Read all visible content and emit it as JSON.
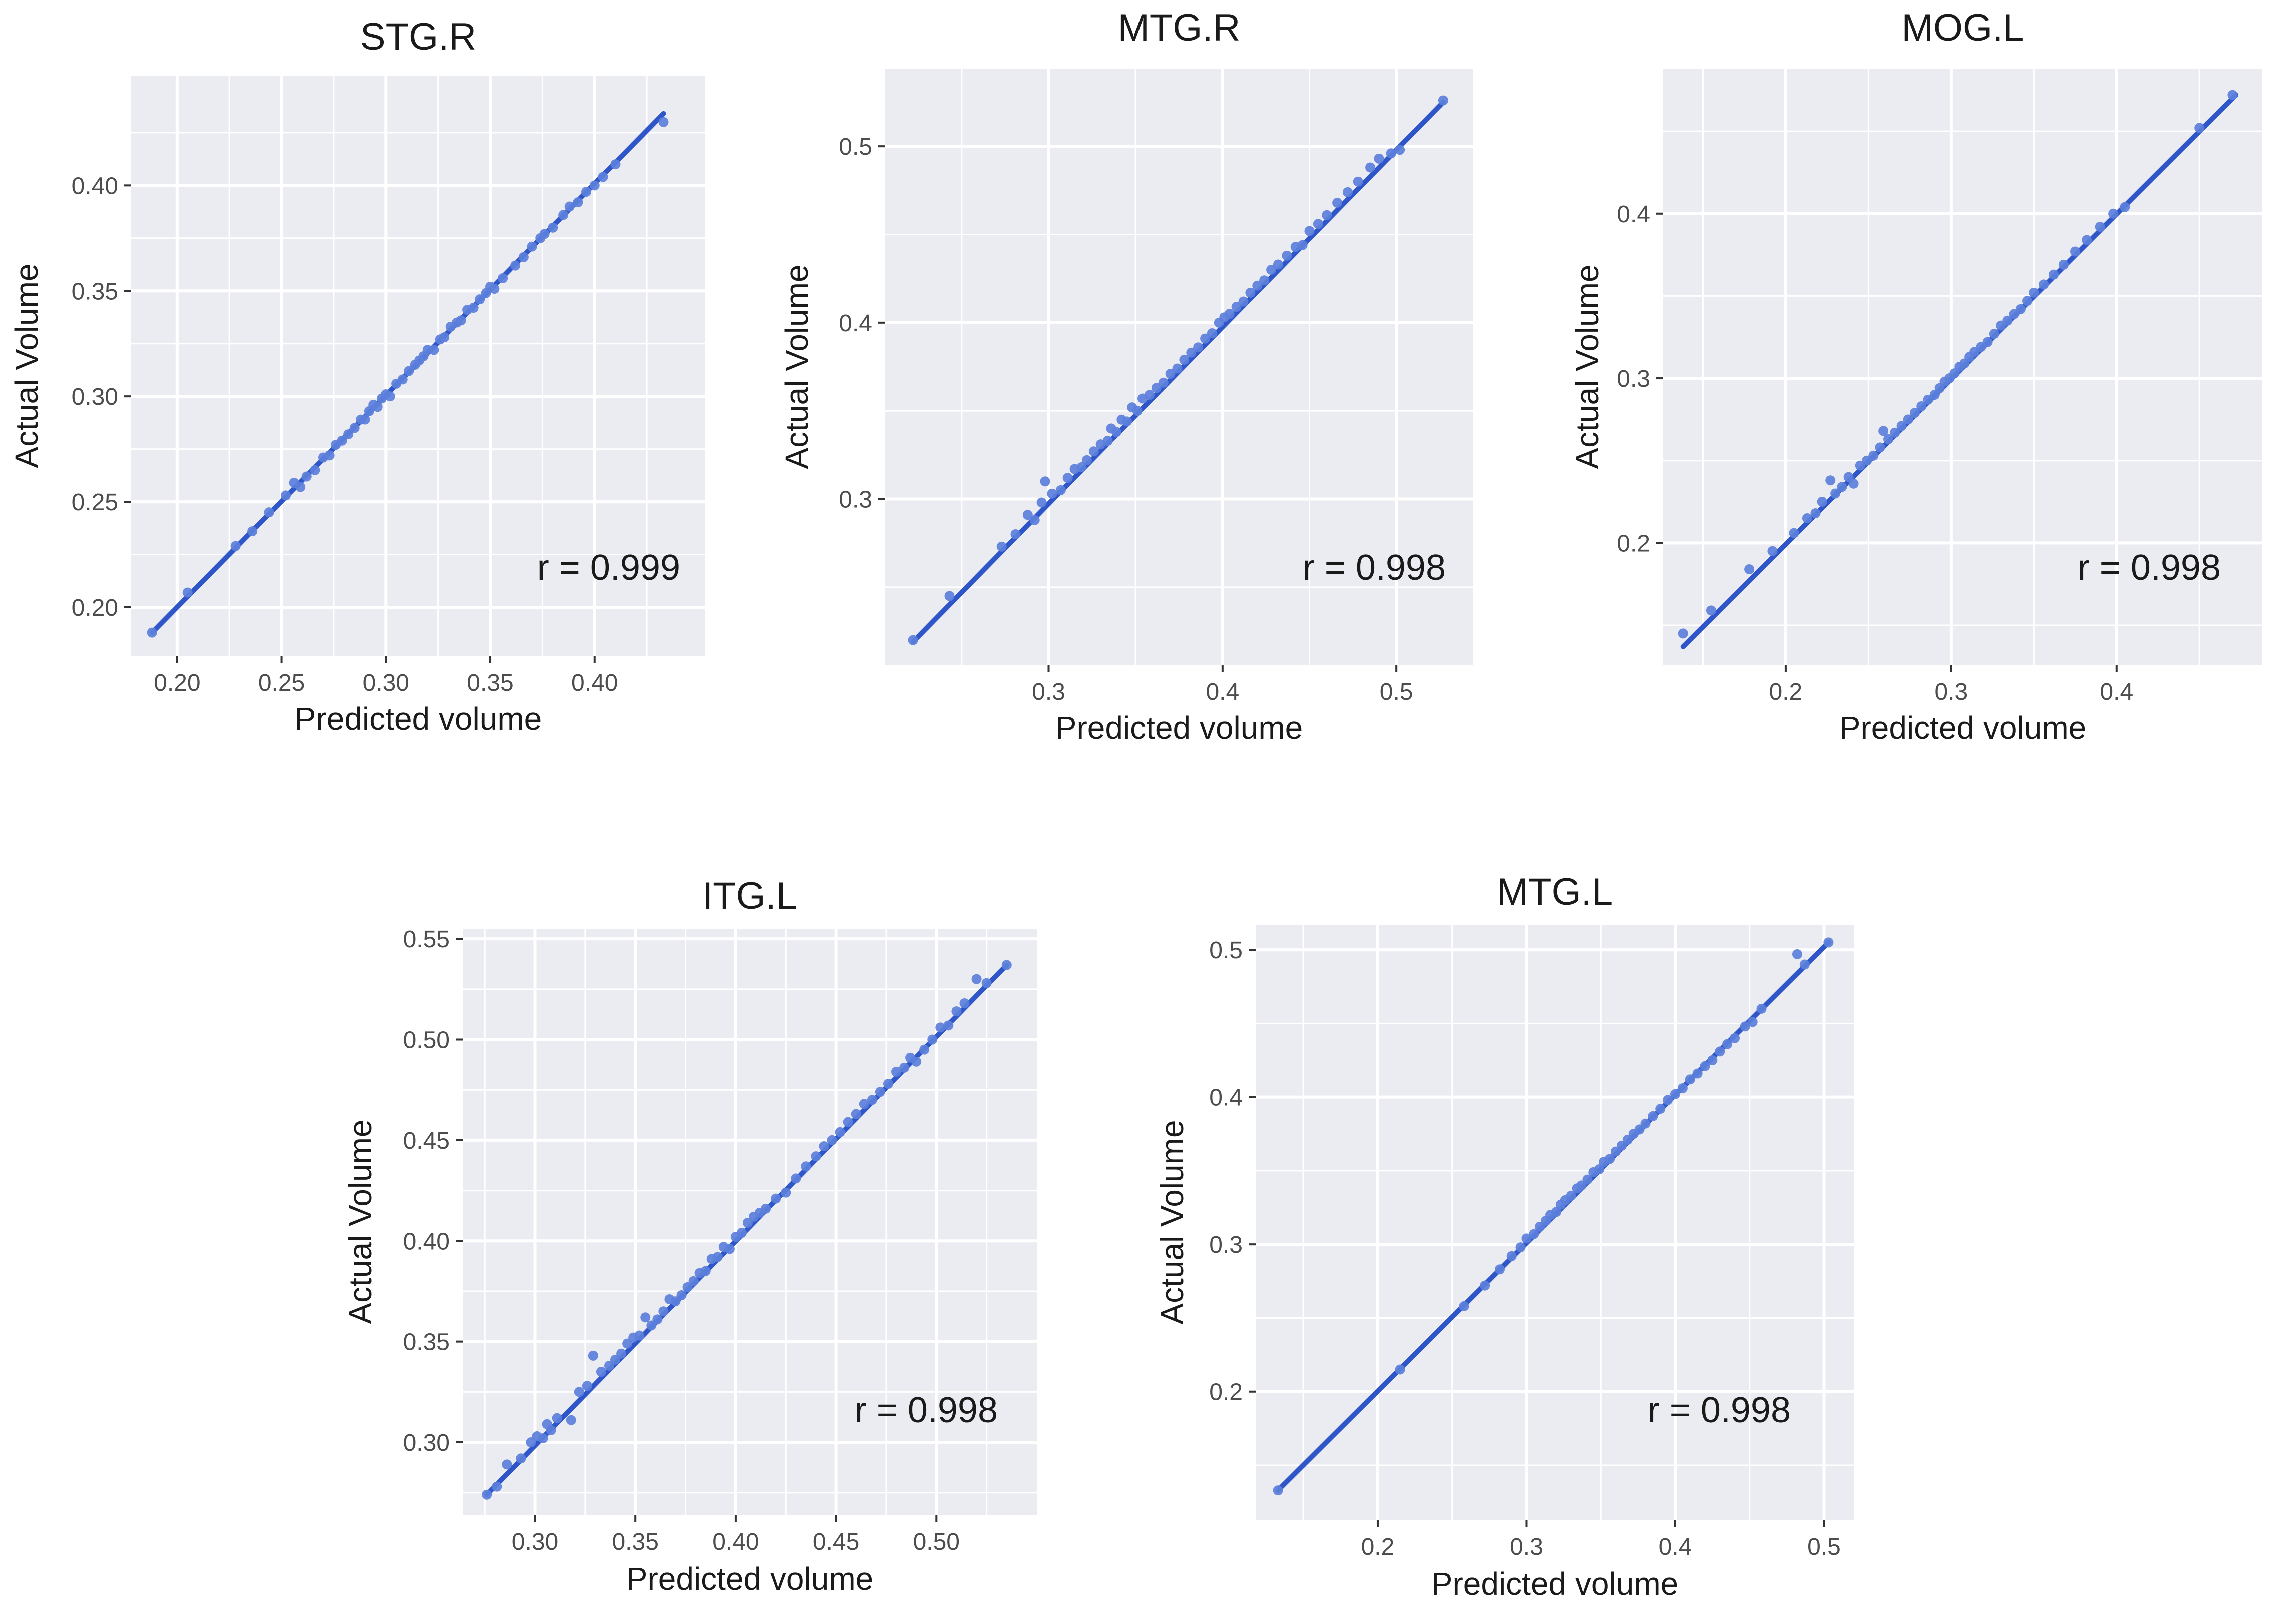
{
  "figure": {
    "colors": {
      "panel_bg": "#EBEBF2",
      "grid": "#FFFFFF",
      "point": "#5B7FDB",
      "line": "#2F56C8",
      "text": "#1A1A1A",
      "tick_text": "#4D4D4D"
    }
  },
  "chart_data": [
    {
      "id": "stg-r",
      "type": "scatter",
      "title": "STG.R",
      "xlabel": "Predicted volume",
      "ylabel": "Actual Volume",
      "annotation": "r = 0.999",
      "xlim": [
        0.178,
        0.453
      ],
      "ylim": [
        0.177,
        0.452
      ],
      "xticks": [
        0.2,
        0.25,
        0.3,
        0.35,
        0.4
      ],
      "xtick_labels": [
        "0.20",
        "0.25",
        "0.30",
        "0.35",
        "0.40"
      ],
      "yticks": [
        0.2,
        0.25,
        0.3,
        0.35,
        0.4
      ],
      "ytick_labels": [
        "0.20",
        "0.25",
        "0.30",
        "0.35",
        "0.40"
      ],
      "fit": [
        [
          0.188,
          0.188
        ],
        [
          0.433,
          0.434
        ]
      ],
      "points": [
        [
          0.188,
          0.188
        ],
        [
          0.205,
          0.207
        ],
        [
          0.228,
          0.229
        ],
        [
          0.236,
          0.236
        ],
        [
          0.244,
          0.245
        ],
        [
          0.252,
          0.253
        ],
        [
          0.256,
          0.259
        ],
        [
          0.259,
          0.257
        ],
        [
          0.262,
          0.262
        ],
        [
          0.266,
          0.265
        ],
        [
          0.27,
          0.271
        ],
        [
          0.273,
          0.272
        ],
        [
          0.276,
          0.277
        ],
        [
          0.279,
          0.279
        ],
        [
          0.282,
          0.282
        ],
        [
          0.285,
          0.285
        ],
        [
          0.288,
          0.289
        ],
        [
          0.29,
          0.289
        ],
        [
          0.292,
          0.293
        ],
        [
          0.294,
          0.296
        ],
        [
          0.296,
          0.295
        ],
        [
          0.298,
          0.299
        ],
        [
          0.3,
          0.301
        ],
        [
          0.302,
          0.3
        ],
        [
          0.305,
          0.306
        ],
        [
          0.308,
          0.308
        ],
        [
          0.311,
          0.312
        ],
        [
          0.314,
          0.315
        ],
        [
          0.316,
          0.317
        ],
        [
          0.318,
          0.319
        ],
        [
          0.32,
          0.322
        ],
        [
          0.323,
          0.322
        ],
        [
          0.326,
          0.327
        ],
        [
          0.328,
          0.328
        ],
        [
          0.331,
          0.333
        ],
        [
          0.334,
          0.335
        ],
        [
          0.336,
          0.336
        ],
        [
          0.339,
          0.341
        ],
        [
          0.342,
          0.342
        ],
        [
          0.345,
          0.346
        ],
        [
          0.348,
          0.349
        ],
        [
          0.35,
          0.352
        ],
        [
          0.352,
          0.351
        ],
        [
          0.356,
          0.356
        ],
        [
          0.362,
          0.362
        ],
        [
          0.366,
          0.366
        ],
        [
          0.37,
          0.371
        ],
        [
          0.374,
          0.375
        ],
        [
          0.376,
          0.377
        ],
        [
          0.38,
          0.38
        ],
        [
          0.385,
          0.386
        ],
        [
          0.388,
          0.39
        ],
        [
          0.392,
          0.392
        ],
        [
          0.396,
          0.397
        ],
        [
          0.4,
          0.4
        ],
        [
          0.404,
          0.404
        ],
        [
          0.41,
          0.41
        ],
        [
          0.433,
          0.43
        ]
      ]
    },
    {
      "id": "mtg-r",
      "type": "scatter",
      "title": "MTG.R",
      "xlabel": "Predicted volume",
      "ylabel": "Actual Volume",
      "annotation": "r = 0.998",
      "xlim": [
        0.206,
        0.544
      ],
      "ylim": [
        0.206,
        0.544
      ],
      "xticks": [
        0.3,
        0.4,
        0.5
      ],
      "xtick_labels": [
        "0.3",
        "0.4",
        "0.5"
      ],
      "yticks": [
        0.3,
        0.4,
        0.5
      ],
      "ytick_labels": [
        "0.3",
        "0.4",
        "0.5"
      ],
      "fit": [
        [
          0.222,
          0.219
        ],
        [
          0.527,
          0.525
        ]
      ],
      "points": [
        [
          0.222,
          0.22
        ],
        [
          0.243,
          0.245
        ],
        [
          0.273,
          0.273
        ],
        [
          0.281,
          0.28
        ],
        [
          0.288,
          0.291
        ],
        [
          0.292,
          0.288
        ],
        [
          0.296,
          0.298
        ],
        [
          0.298,
          0.31
        ],
        [
          0.302,
          0.303
        ],
        [
          0.307,
          0.305
        ],
        [
          0.311,
          0.312
        ],
        [
          0.315,
          0.317
        ],
        [
          0.319,
          0.318
        ],
        [
          0.322,
          0.322
        ],
        [
          0.326,
          0.327
        ],
        [
          0.33,
          0.331
        ],
        [
          0.334,
          0.333
        ],
        [
          0.336,
          0.34
        ],
        [
          0.339,
          0.338
        ],
        [
          0.342,
          0.345
        ],
        [
          0.345,
          0.344
        ],
        [
          0.348,
          0.352
        ],
        [
          0.351,
          0.35
        ],
        [
          0.354,
          0.357
        ],
        [
          0.358,
          0.359
        ],
        [
          0.362,
          0.363
        ],
        [
          0.366,
          0.366
        ],
        [
          0.37,
          0.371
        ],
        [
          0.374,
          0.374
        ],
        [
          0.378,
          0.379
        ],
        [
          0.382,
          0.383
        ],
        [
          0.386,
          0.386
        ],
        [
          0.39,
          0.391
        ],
        [
          0.394,
          0.394
        ],
        [
          0.398,
          0.4
        ],
        [
          0.401,
          0.403
        ],
        [
          0.404,
          0.405
        ],
        [
          0.408,
          0.409
        ],
        [
          0.412,
          0.412
        ],
        [
          0.416,
          0.417
        ],
        [
          0.42,
          0.421
        ],
        [
          0.424,
          0.424
        ],
        [
          0.428,
          0.43
        ],
        [
          0.432,
          0.433
        ],
        [
          0.437,
          0.438
        ],
        [
          0.442,
          0.443
        ],
        [
          0.446,
          0.444
        ],
        [
          0.45,
          0.452
        ],
        [
          0.455,
          0.456
        ],
        [
          0.46,
          0.461
        ],
        [
          0.466,
          0.468
        ],
        [
          0.472,
          0.474
        ],
        [
          0.478,
          0.48
        ],
        [
          0.485,
          0.488
        ],
        [
          0.49,
          0.493
        ],
        [
          0.497,
          0.496
        ],
        [
          0.502,
          0.498
        ],
        [
          0.527,
          0.526
        ]
      ]
    },
    {
      "id": "mog-l",
      "type": "scatter",
      "title": "MOG.L",
      "xlabel": "Predicted volume",
      "ylabel": "Actual Volume",
      "annotation": "r = 0.998",
      "xlim": [
        0.126,
        0.488
      ],
      "ylim": [
        0.126,
        0.488
      ],
      "xticks": [
        0.2,
        0.3,
        0.4
      ],
      "xtick_labels": [
        "0.2",
        "0.3",
        "0.4"
      ],
      "yticks": [
        0.2,
        0.3,
        0.4
      ],
      "ytick_labels": [
        "0.2",
        "0.3",
        "0.4"
      ],
      "fit": [
        [
          0.138,
          0.137
        ],
        [
          0.472,
          0.472
        ]
      ],
      "points": [
        [
          0.138,
          0.145
        ],
        [
          0.155,
          0.159
        ],
        [
          0.178,
          0.184
        ],
        [
          0.192,
          0.195
        ],
        [
          0.205,
          0.206
        ],
        [
          0.213,
          0.215
        ],
        [
          0.218,
          0.218
        ],
        [
          0.222,
          0.225
        ],
        [
          0.227,
          0.238
        ],
        [
          0.23,
          0.23
        ],
        [
          0.234,
          0.234
        ],
        [
          0.238,
          0.24
        ],
        [
          0.241,
          0.236
        ],
        [
          0.245,
          0.247
        ],
        [
          0.249,
          0.25
        ],
        [
          0.253,
          0.253
        ],
        [
          0.257,
          0.258
        ],
        [
          0.259,
          0.268
        ],
        [
          0.262,
          0.263
        ],
        [
          0.266,
          0.267
        ],
        [
          0.27,
          0.271
        ],
        [
          0.274,
          0.275
        ],
        [
          0.278,
          0.279
        ],
        [
          0.282,
          0.283
        ],
        [
          0.286,
          0.287
        ],
        [
          0.29,
          0.29
        ],
        [
          0.293,
          0.294
        ],
        [
          0.296,
          0.298
        ],
        [
          0.299,
          0.3
        ],
        [
          0.302,
          0.303
        ],
        [
          0.305,
          0.307
        ],
        [
          0.308,
          0.309
        ],
        [
          0.311,
          0.313
        ],
        [
          0.314,
          0.316
        ],
        [
          0.318,
          0.319
        ],
        [
          0.322,
          0.322
        ],
        [
          0.326,
          0.327
        ],
        [
          0.33,
          0.332
        ],
        [
          0.334,
          0.335
        ],
        [
          0.338,
          0.339
        ],
        [
          0.342,
          0.342
        ],
        [
          0.346,
          0.347
        ],
        [
          0.35,
          0.352
        ],
        [
          0.356,
          0.357
        ],
        [
          0.362,
          0.363
        ],
        [
          0.368,
          0.369
        ],
        [
          0.375,
          0.377
        ],
        [
          0.382,
          0.384
        ],
        [
          0.39,
          0.392
        ],
        [
          0.398,
          0.4
        ],
        [
          0.405,
          0.404
        ],
        [
          0.45,
          0.452
        ],
        [
          0.47,
          0.472
        ]
      ]
    },
    {
      "id": "itg-l",
      "type": "scatter",
      "title": "ITG.L",
      "xlabel": "Predicted volume",
      "ylabel": "Actual Volume",
      "annotation": "r = 0.998",
      "xlim": [
        0.264,
        0.55
      ],
      "ylim": [
        0.264,
        0.555
      ],
      "xticks": [
        0.3,
        0.35,
        0.4,
        0.45,
        0.5
      ],
      "xtick_labels": [
        "0.30",
        "0.35",
        "0.40",
        "0.45",
        "0.50"
      ],
      "yticks": [
        0.3,
        0.35,
        0.4,
        0.45,
        0.5,
        0.55
      ],
      "ytick_labels": [
        "0.30",
        "0.35",
        "0.40",
        "0.45",
        "0.50",
        "0.55"
      ],
      "fit": [
        [
          0.276,
          0.274
        ],
        [
          0.535,
          0.537
        ]
      ],
      "points": [
        [
          0.276,
          0.274
        ],
        [
          0.281,
          0.278
        ],
        [
          0.286,
          0.289
        ],
        [
          0.293,
          0.292
        ],
        [
          0.298,
          0.3
        ],
        [
          0.301,
          0.303
        ],
        [
          0.304,
          0.302
        ],
        [
          0.306,
          0.309
        ],
        [
          0.308,
          0.306
        ],
        [
          0.311,
          0.312
        ],
        [
          0.318,
          0.311
        ],
        [
          0.322,
          0.325
        ],
        [
          0.326,
          0.328
        ],
        [
          0.329,
          0.343
        ],
        [
          0.333,
          0.335
        ],
        [
          0.337,
          0.338
        ],
        [
          0.34,
          0.341
        ],
        [
          0.343,
          0.344
        ],
        [
          0.346,
          0.349
        ],
        [
          0.349,
          0.352
        ],
        [
          0.352,
          0.353
        ],
        [
          0.355,
          0.362
        ],
        [
          0.358,
          0.358
        ],
        [
          0.361,
          0.361
        ],
        [
          0.364,
          0.365
        ],
        [
          0.367,
          0.371
        ],
        [
          0.37,
          0.37
        ],
        [
          0.373,
          0.373
        ],
        [
          0.376,
          0.377
        ],
        [
          0.379,
          0.38
        ],
        [
          0.382,
          0.384
        ],
        [
          0.385,
          0.385
        ],
        [
          0.388,
          0.391
        ],
        [
          0.391,
          0.392
        ],
        [
          0.394,
          0.397
        ],
        [
          0.397,
          0.396
        ],
        [
          0.4,
          0.402
        ],
        [
          0.403,
          0.404
        ],
        [
          0.406,
          0.409
        ],
        [
          0.409,
          0.412
        ],
        [
          0.412,
          0.414
        ],
        [
          0.415,
          0.416
        ],
        [
          0.42,
          0.421
        ],
        [
          0.425,
          0.424
        ],
        [
          0.43,
          0.431
        ],
        [
          0.435,
          0.437
        ],
        [
          0.44,
          0.442
        ],
        [
          0.444,
          0.447
        ],
        [
          0.448,
          0.45
        ],
        [
          0.452,
          0.454
        ],
        [
          0.456,
          0.459
        ],
        [
          0.46,
          0.463
        ],
        [
          0.464,
          0.468
        ],
        [
          0.468,
          0.47
        ],
        [
          0.472,
          0.474
        ],
        [
          0.476,
          0.478
        ],
        [
          0.48,
          0.484
        ],
        [
          0.484,
          0.486
        ],
        [
          0.487,
          0.491
        ],
        [
          0.49,
          0.489
        ],
        [
          0.494,
          0.495
        ],
        [
          0.498,
          0.5
        ],
        [
          0.502,
          0.506
        ],
        [
          0.506,
          0.507
        ],
        [
          0.51,
          0.514
        ],
        [
          0.514,
          0.518
        ],
        [
          0.52,
          0.53
        ],
        [
          0.525,
          0.528
        ],
        [
          0.535,
          0.537
        ]
      ]
    },
    {
      "id": "mtg-l",
      "type": "scatter",
      "title": "MTG.L",
      "xlabel": "Predicted volume",
      "ylabel": "Actual Volume",
      "annotation": "r = 0.998",
      "xlim": [
        0.118,
        0.52
      ],
      "ylim": [
        0.113,
        0.517
      ],
      "xticks": [
        0.2,
        0.3,
        0.4,
        0.5
      ],
      "xtick_labels": [
        "0.2",
        "0.3",
        "0.4",
        "0.5"
      ],
      "yticks": [
        0.2,
        0.3,
        0.4,
        0.5
      ],
      "ytick_labels": [
        "0.2",
        "0.3",
        "0.4",
        "0.5"
      ],
      "fit": [
        [
          0.133,
          0.133
        ],
        [
          0.503,
          0.505
        ]
      ],
      "points": [
        [
          0.133,
          0.133
        ],
        [
          0.215,
          0.215
        ],
        [
          0.258,
          0.258
        ],
        [
          0.272,
          0.272
        ],
        [
          0.282,
          0.283
        ],
        [
          0.29,
          0.292
        ],
        [
          0.296,
          0.298
        ],
        [
          0.3,
          0.304
        ],
        [
          0.305,
          0.307
        ],
        [
          0.309,
          0.312
        ],
        [
          0.313,
          0.316
        ],
        [
          0.316,
          0.32
        ],
        [
          0.32,
          0.322
        ],
        [
          0.323,
          0.327
        ],
        [
          0.326,
          0.33
        ],
        [
          0.33,
          0.333
        ],
        [
          0.334,
          0.338
        ],
        [
          0.337,
          0.34
        ],
        [
          0.341,
          0.344
        ],
        [
          0.345,
          0.349
        ],
        [
          0.349,
          0.351
        ],
        [
          0.352,
          0.356
        ],
        [
          0.356,
          0.358
        ],
        [
          0.36,
          0.363
        ],
        [
          0.364,
          0.367
        ],
        [
          0.368,
          0.371
        ],
        [
          0.372,
          0.375
        ],
        [
          0.376,
          0.378
        ],
        [
          0.38,
          0.382
        ],
        [
          0.385,
          0.387
        ],
        [
          0.39,
          0.392
        ],
        [
          0.395,
          0.398
        ],
        [
          0.4,
          0.402
        ],
        [
          0.405,
          0.406
        ],
        [
          0.41,
          0.412
        ],
        [
          0.415,
          0.416
        ],
        [
          0.42,
          0.421
        ],
        [
          0.425,
          0.425
        ],
        [
          0.43,
          0.431
        ],
        [
          0.435,
          0.436
        ],
        [
          0.44,
          0.44
        ],
        [
          0.447,
          0.448
        ],
        [
          0.452,
          0.451
        ],
        [
          0.458,
          0.46
        ],
        [
          0.482,
          0.497
        ],
        [
          0.487,
          0.49
        ],
        [
          0.503,
          0.505
        ]
      ]
    }
  ]
}
